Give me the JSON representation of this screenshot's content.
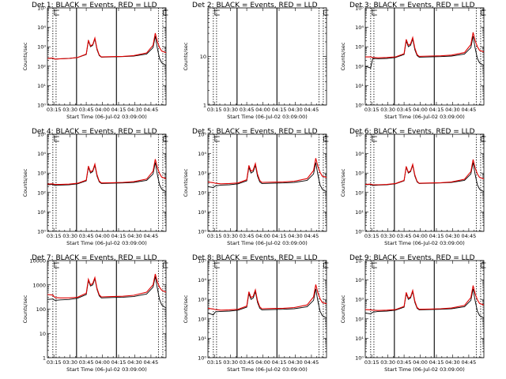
{
  "figure": {
    "x_ticks": [
      "03:15",
      "03:30",
      "03:45",
      "04:00",
      "04:15",
      "04:30",
      "04:45"
    ],
    "x_label": "Start Time (06-Jul-02 03:09:00)",
    "y_label": "Counts/sec",
    "colors": {
      "events": "#000000",
      "lld": "#e00000"
    },
    "markers": {
      "solid_minutes": [
        27,
        64
      ],
      "dotted_pairs": [
        [
          5,
          8
        ],
        [
          103,
          107
        ]
      ]
    }
  },
  "chart_data": [
    {
      "type": "line",
      "title": "Det 1: BLACK = Events, RED = LLD",
      "xlabel": "Start Time (06-Jul-02 03:09:00)",
      "ylabel": "Counts/sec",
      "yscale": "log",
      "ylim": [
        1,
        100000
      ],
      "y_ticks": [
        "10⁰",
        "10¹",
        "10²",
        "10³",
        "10⁴",
        "10⁵"
      ],
      "series": [
        {
          "name": "Events",
          "x": [
            0,
            5,
            7,
            12,
            20,
            28,
            36,
            38,
            40,
            42,
            44,
            46,
            48,
            50,
            60,
            70,
            80,
            92,
            98,
            100,
            102,
            104,
            106,
            110
          ],
          "y": [
            250,
            260,
            230,
            240,
            250,
            280,
            400,
            2000,
            1000,
            1200,
            2500,
            700,
            350,
            290,
            300,
            310,
            330,
            420,
            900,
            3500,
            800,
            250,
            150,
            110
          ]
        },
        {
          "name": "LLD",
          "x": [
            0,
            5,
            7,
            12,
            20,
            28,
            36,
            38,
            40,
            42,
            44,
            46,
            48,
            50,
            60,
            70,
            80,
            92,
            98,
            100,
            102,
            104,
            106,
            110
          ],
          "y": [
            250,
            260,
            230,
            240,
            250,
            280,
            420,
            2200,
            1100,
            1300,
            2800,
            800,
            380,
            300,
            310,
            320,
            350,
            480,
            1200,
            5000,
            1800,
            900,
            600,
            500
          ]
        }
      ]
    },
    {
      "type": "line",
      "title": "Det 2: BLACK = Events, RED = LLD",
      "xlabel": "Start Time (06-Jul-02 03:09:00)",
      "ylabel": "Counts/sec",
      "yscale": "log",
      "ylim": [
        1,
        100
      ],
      "y_ticks": [
        "1",
        "10",
        ""
      ],
      "series": [
        {
          "name": "Events",
          "x": [],
          "y": []
        },
        {
          "name": "LLD",
          "x": [],
          "y": []
        }
      ]
    },
    {
      "type": "line",
      "title": "Det 3: BLACK = Events, RED = LLD",
      "xlabel": "Start Time (06-Jul-02 03:09:00)",
      "ylabel": "Counts/sec",
      "yscale": "log",
      "ylim": [
        1,
        100000
      ],
      "y_ticks": [
        "10⁰",
        "10¹",
        "10²",
        "10³",
        "10⁴",
        "10⁵"
      ],
      "series": [
        {
          "name": "Events",
          "x": [
            0,
            5,
            7,
            12,
            20,
            28,
            36,
            38,
            40,
            42,
            44,
            46,
            48,
            50,
            60,
            70,
            80,
            92,
            98,
            100,
            102,
            104,
            106,
            110
          ],
          "y": [
            100,
            80,
            250,
            240,
            250,
            280,
            400,
            2000,
            1000,
            1200,
            2500,
            700,
            350,
            290,
            300,
            310,
            330,
            420,
            900,
            3500,
            800,
            250,
            150,
            110
          ]
        },
        {
          "name": "LLD",
          "x": [
            0,
            5,
            7,
            12,
            20,
            28,
            36,
            38,
            40,
            42,
            44,
            46,
            48,
            50,
            60,
            70,
            80,
            92,
            98,
            100,
            102,
            104,
            106,
            110
          ],
          "y": [
            300,
            300,
            280,
            270,
            280,
            300,
            440,
            2400,
            1200,
            1400,
            3000,
            850,
            400,
            320,
            330,
            340,
            370,
            500,
            1300,
            5500,
            2000,
            1000,
            650,
            550
          ]
        }
      ]
    },
    {
      "type": "line",
      "title": "Det 4: BLACK = Events, RED = LLD",
      "xlabel": "Start Time (06-Jul-02 03:09:00)",
      "ylabel": "Counts/sec",
      "yscale": "log",
      "ylim": [
        1,
        100000
      ],
      "y_ticks": [
        "10⁰",
        "10¹",
        "10²",
        "10³",
        "10⁴",
        "10⁵"
      ],
      "series": [
        {
          "name": "Events",
          "x": [
            0,
            5,
            7,
            12,
            20,
            28,
            36,
            38,
            40,
            42,
            44,
            46,
            48,
            50,
            60,
            70,
            80,
            92,
            98,
            100,
            102,
            104,
            106,
            110
          ],
          "y": [
            250,
            260,
            230,
            240,
            250,
            280,
            400,
            2000,
            1000,
            1200,
            2500,
            700,
            350,
            290,
            300,
            310,
            330,
            420,
            900,
            3500,
            800,
            250,
            150,
            110
          ]
        },
        {
          "name": "LLD",
          "x": [
            0,
            5,
            7,
            12,
            20,
            28,
            36,
            38,
            40,
            42,
            44,
            46,
            48,
            50,
            60,
            70,
            80,
            92,
            98,
            100,
            102,
            104,
            106,
            110
          ],
          "y": [
            270,
            280,
            260,
            260,
            270,
            300,
            430,
            2300,
            1150,
            1350,
            2900,
            820,
            390,
            310,
            320,
            330,
            360,
            490,
            1250,
            5200,
            1900,
            950,
            620,
            520
          ]
        }
      ]
    },
    {
      "type": "line",
      "title": "Det 5: BLACK = Events, RED = LLD",
      "xlabel": "Start Time (06-Jul-02 03:09:00)",
      "ylabel": "Counts/sec",
      "yscale": "log",
      "ylim": [
        1,
        100000
      ],
      "y_ticks": [
        "10⁰",
        "10¹",
        "10²",
        "10³",
        "10⁴",
        "10⁵"
      ],
      "series": [
        {
          "name": "Events",
          "x": [
            0,
            5,
            7,
            12,
            20,
            28,
            36,
            38,
            40,
            42,
            44,
            46,
            48,
            50,
            60,
            70,
            80,
            92,
            98,
            100,
            102,
            104,
            106,
            110
          ],
          "y": [
            200,
            180,
            220,
            240,
            250,
            280,
            400,
            2000,
            1000,
            1200,
            2500,
            700,
            350,
            290,
            300,
            310,
            330,
            420,
            900,
            3500,
            800,
            250,
            150,
            110
          ]
        },
        {
          "name": "LLD",
          "x": [
            0,
            5,
            7,
            12,
            20,
            28,
            36,
            38,
            40,
            42,
            44,
            46,
            48,
            50,
            60,
            70,
            80,
            92,
            98,
            100,
            102,
            104,
            106,
            110
          ],
          "y": [
            350,
            320,
            300,
            280,
            290,
            310,
            450,
            2500,
            1250,
            1450,
            3100,
            880,
            420,
            330,
            340,
            350,
            380,
            520,
            1350,
            5800,
            2200,
            1100,
            700,
            600
          ]
        }
      ]
    },
    {
      "type": "line",
      "title": "Det 6: BLACK = Events, RED = LLD",
      "xlabel": "Start Time (06-Jul-02 03:09:00)",
      "ylabel": "Counts/sec",
      "yscale": "log",
      "ylim": [
        1,
        100000
      ],
      "y_ticks": [
        "10⁰",
        "10¹",
        "10²",
        "10³",
        "10⁴",
        "10⁵"
      ],
      "series": [
        {
          "name": "Events",
          "x": [
            0,
            5,
            7,
            12,
            20,
            28,
            36,
            38,
            40,
            42,
            44,
            46,
            48,
            50,
            60,
            70,
            80,
            92,
            98,
            100,
            102,
            104,
            106,
            110
          ],
          "y": [
            250,
            260,
            230,
            240,
            250,
            280,
            400,
            2000,
            1000,
            1200,
            2500,
            700,
            350,
            290,
            300,
            310,
            330,
            420,
            900,
            3500,
            800,
            250,
            150,
            110
          ]
        },
        {
          "name": "LLD",
          "x": [
            0,
            5,
            7,
            12,
            20,
            28,
            36,
            38,
            40,
            42,
            44,
            46,
            48,
            50,
            60,
            70,
            80,
            92,
            98,
            100,
            102,
            104,
            106,
            110
          ],
          "y": [
            260,
            270,
            250,
            250,
            260,
            290,
            420,
            2200,
            1100,
            1300,
            2800,
            800,
            380,
            300,
            310,
            320,
            350,
            480,
            1200,
            5000,
            1800,
            900,
            600,
            500
          ]
        }
      ]
    },
    {
      "type": "line",
      "title": "Det 7: BLACK = Events, RED = LLD",
      "xlabel": "Start Time (06-Jul-02 03:09:00)",
      "ylabel": "Counts/sec",
      "yscale": "log",
      "ylim": [
        1,
        10000
      ],
      "y_ticks": [
        "1",
        "10",
        "100",
        "1000",
        "10000"
      ],
      "series": [
        {
          "name": "Events",
          "x": [
            0,
            5,
            7,
            12,
            20,
            28,
            36,
            38,
            40,
            42,
            44,
            46,
            48,
            50,
            60,
            70,
            80,
            92,
            98,
            100,
            102,
            104,
            106,
            110
          ],
          "y": [
            250,
            260,
            230,
            240,
            250,
            280,
            400,
            1500,
            900,
            1000,
            1800,
            650,
            350,
            290,
            300,
            310,
            330,
            420,
            800,
            2200,
            700,
            250,
            150,
            110
          ]
        },
        {
          "name": "LLD",
          "x": [
            0,
            5,
            7,
            12,
            20,
            28,
            36,
            38,
            40,
            42,
            44,
            46,
            48,
            50,
            60,
            70,
            80,
            92,
            98,
            100,
            102,
            104,
            106,
            110
          ],
          "y": [
            400,
            380,
            300,
            290,
            290,
            310,
            450,
            1700,
            1000,
            1150,
            2000,
            720,
            390,
            320,
            330,
            340,
            370,
            500,
            1000,
            2800,
            1300,
            800,
            600,
            500
          ]
        }
      ]
    },
    {
      "type": "line",
      "title": "Det 8: BLACK = Events, RED = LLD",
      "xlabel": "Start Time (06-Jul-02 03:09:00)",
      "ylabel": "Counts/sec",
      "yscale": "log",
      "ylim": [
        1,
        100000
      ],
      "y_ticks": [
        "10⁰",
        "10¹",
        "10²",
        "10³",
        "10⁴",
        "10⁵"
      ],
      "series": [
        {
          "name": "Events",
          "x": [
            0,
            5,
            7,
            12,
            20,
            28,
            36,
            38,
            40,
            42,
            44,
            46,
            48,
            50,
            60,
            70,
            80,
            92,
            98,
            100,
            102,
            104,
            106,
            110
          ],
          "y": [
            200,
            160,
            230,
            240,
            250,
            280,
            400,
            2000,
            1000,
            1200,
            2500,
            700,
            350,
            290,
            300,
            310,
            330,
            420,
            900,
            3500,
            800,
            250,
            150,
            110
          ]
        },
        {
          "name": "LLD",
          "x": [
            0,
            5,
            7,
            12,
            20,
            28,
            36,
            38,
            40,
            42,
            44,
            46,
            48,
            50,
            60,
            70,
            80,
            92,
            98,
            100,
            102,
            104,
            106,
            110
          ],
          "y": [
            350,
            320,
            300,
            280,
            290,
            310,
            450,
            2500,
            1250,
            1450,
            3100,
            880,
            420,
            330,
            340,
            350,
            380,
            520,
            1350,
            5800,
            2200,
            1100,
            700,
            600
          ]
        }
      ]
    },
    {
      "type": "line",
      "title": "Det 9: BLACK = Events, RED = LLD",
      "xlabel": "Start Time (06-Jul-02 03:09:00)",
      "ylabel": "Counts/sec",
      "yscale": "log",
      "ylim": [
        1,
        100000
      ],
      "y_ticks": [
        "10⁰",
        "10¹",
        "10²",
        "10³",
        "10⁴",
        "10⁵"
      ],
      "series": [
        {
          "name": "Events",
          "x": [
            0,
            5,
            7,
            12,
            20,
            28,
            36,
            38,
            40,
            42,
            44,
            46,
            48,
            50,
            60,
            70,
            80,
            92,
            98,
            100,
            102,
            104,
            106,
            110
          ],
          "y": [
            200,
            180,
            220,
            240,
            250,
            280,
            400,
            2000,
            1000,
            1200,
            2500,
            700,
            350,
            290,
            300,
            310,
            330,
            420,
            900,
            3500,
            800,
            250,
            150,
            110
          ]
        },
        {
          "name": "LLD",
          "x": [
            0,
            5,
            7,
            12,
            20,
            28,
            36,
            38,
            40,
            42,
            44,
            46,
            48,
            50,
            60,
            70,
            80,
            92,
            98,
            100,
            102,
            104,
            106,
            110
          ],
          "y": [
            300,
            290,
            280,
            270,
            280,
            300,
            440,
            2300,
            1150,
            1350,
            2900,
            820,
            390,
            310,
            320,
            330,
            360,
            490,
            1250,
            5200,
            1900,
            950,
            620,
            520
          ]
        }
      ]
    }
  ]
}
